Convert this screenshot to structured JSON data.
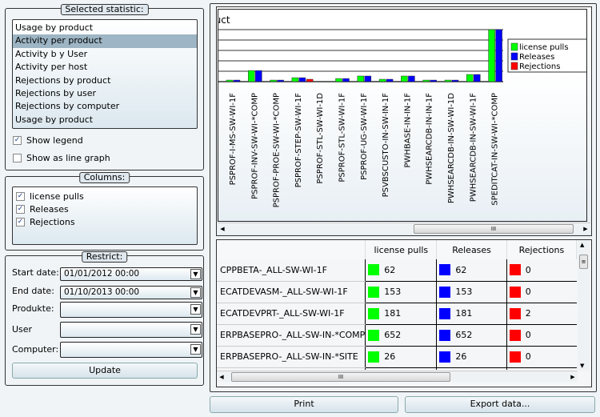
{
  "statistic": {
    "title": "Selected statistic:",
    "items": [
      "Usage by product",
      "Activity per product",
      "Activity b y User",
      "Activity per host",
      "Rejections by product",
      "Rejections by user",
      "Rejections by computer",
      "Usage by product"
    ],
    "selected_index": 1,
    "show_legend": {
      "label": "Show legend",
      "checked": true
    },
    "line_graph": {
      "label": "Show as line graph",
      "checked": false
    }
  },
  "columns": {
    "title": "Columns:",
    "items": [
      {
        "label": "license pulls",
        "checked": true
      },
      {
        "label": "Releases",
        "checked": true
      },
      {
        "label": "Rejections",
        "checked": true
      }
    ]
  },
  "restrict": {
    "title": "Restrict:",
    "start_label": "Start date:",
    "start_value": "01/01/2012 00:00",
    "end_label": "End date:",
    "end_value": "01/10/2013 00:00",
    "product_label": "Produkte:",
    "product_value": "",
    "user_label": "User",
    "user_value": "",
    "computer_label": "Computer:",
    "computer_value": "",
    "update": "Update"
  },
  "colors": {
    "license_pulls": "#00ff00",
    "releases": "#0000ff",
    "rejections": "#ff0000"
  },
  "chart_data": {
    "type": "bar",
    "title": "duct",
    "categories": [
      "PSPROF-I-MS-SW-WI-1F",
      "PSPROF-INV-SW-WI-*COMP",
      "PSPROF-PROE-SW-WI-*COMP",
      "PSPROF-STEP-SW-WI-1F",
      "PSPROF-STL-SW-WI-1D",
      "PSPROF-STL-SW-WI-1F",
      "PSPROF-UG-SW-WI-1F",
      "PSVBSCUSTO-IN-SW-IN-1F",
      "PWHBASE-IN-IN-1F",
      "PWHSEARCDB-IN-IN-1F",
      "PWHSEARCDB-IN-SW-WI-1D",
      "PWHSEARCDB-IN-SW-WI-1F",
      "SPEDITCAT-IN-SW-WI-*COMP"
    ],
    "series": [
      {
        "name": "license pulls",
        "values": [
          150,
          1070,
          150,
          380,
          0,
          300,
          540,
          230,
          540,
          150,
          150,
          690,
          5000
        ]
      },
      {
        "name": "Releases",
        "values": [
          150,
          1070,
          150,
          380,
          0,
          300,
          540,
          230,
          540,
          150,
          150,
          690,
          5000
        ]
      },
      {
        "name": "Rejections",
        "values": [
          0,
          0,
          0,
          0,
          230,
          0,
          0,
          0,
          0,
          0,
          0,
          0,
          0
        ]
      }
    ],
    "ylim": [
      0,
      5000
    ],
    "grid": true,
    "legend": "top-right"
  },
  "table": {
    "headers": [
      "",
      "license pulls",
      "Releases",
      "Rejections"
    ],
    "rows": [
      [
        "CPPBETA-_ALL-SW-WI-1F",
        "62",
        "62",
        "0"
      ],
      [
        "ECATDEVASM-_ALL-SW-WI-1F",
        "153",
        "153",
        "0"
      ],
      [
        "ECATDEVPRT-_ALL-SW-WI-1F",
        "181",
        "181",
        "2"
      ],
      [
        "ERPBASEPRO-_ALL-SW-IN-*COMP",
        "652",
        "652",
        "0"
      ],
      [
        "ERPBASEPRO-_ALL-SW-IN-*SITE",
        "26",
        "26",
        "0"
      ]
    ]
  },
  "buttons": {
    "print": "Print",
    "export": "Export data..."
  }
}
